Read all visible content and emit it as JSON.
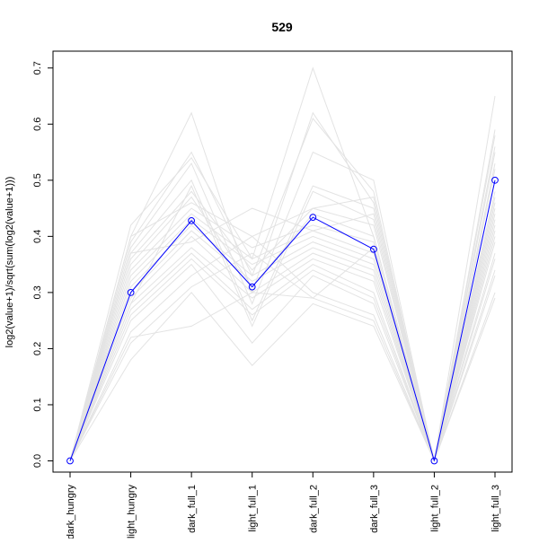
{
  "chart_data": {
    "type": "line",
    "title": "529",
    "xlabel": "",
    "ylabel": "log2(value+1)/sqrt(sum(log2(value+1)))",
    "categories": [
      "dark_hungry",
      "light_hungry",
      "dark_full_1",
      "light_full_1",
      "dark_full_2",
      "dark_full_3",
      "light_full_2",
      "light_full_3"
    ],
    "yticks": [
      0.0,
      0.1,
      0.2,
      0.3,
      0.4,
      0.5,
      0.6,
      0.7
    ],
    "ytick_labels": [
      "0.0",
      "0.1",
      "0.2",
      "0.3",
      "0.4",
      "0.5",
      "0.6",
      "0.7"
    ],
    "ylim": [
      -0.02,
      0.73
    ],
    "grid": false,
    "highlight": {
      "color": "#0000ff",
      "values": [
        0.0,
        0.3,
        0.428,
        0.31,
        0.434,
        0.377,
        0.0,
        0.5
      ]
    },
    "background_series_color": "#e3e3e3",
    "background_series": [
      [
        0.0,
        0.42,
        0.54,
        0.36,
        0.7,
        0.4,
        0.0,
        0.65
      ],
      [
        0.0,
        0.4,
        0.62,
        0.3,
        0.62,
        0.46,
        0.0,
        0.59
      ],
      [
        0.0,
        0.39,
        0.55,
        0.33,
        0.61,
        0.48,
        0.0,
        0.58
      ],
      [
        0.0,
        0.38,
        0.53,
        0.28,
        0.55,
        0.5,
        0.0,
        0.55
      ],
      [
        0.0,
        0.37,
        0.5,
        0.25,
        0.49,
        0.45,
        0.0,
        0.53
      ],
      [
        0.0,
        0.36,
        0.48,
        0.34,
        0.45,
        0.42,
        0.0,
        0.52
      ],
      [
        0.0,
        0.35,
        0.47,
        0.31,
        0.44,
        0.4,
        0.0,
        0.5
      ],
      [
        0.0,
        0.34,
        0.45,
        0.38,
        0.42,
        0.39,
        0.0,
        0.48
      ],
      [
        0.0,
        0.33,
        0.44,
        0.36,
        0.41,
        0.37,
        0.0,
        0.47
      ],
      [
        0.0,
        0.32,
        0.43,
        0.35,
        0.4,
        0.36,
        0.0,
        0.45
      ],
      [
        0.0,
        0.31,
        0.42,
        0.33,
        0.39,
        0.35,
        0.0,
        0.44
      ],
      [
        0.0,
        0.3,
        0.41,
        0.32,
        0.38,
        0.34,
        0.0,
        0.43
      ],
      [
        0.0,
        0.29,
        0.4,
        0.3,
        0.37,
        0.33,
        0.0,
        0.42
      ],
      [
        0.0,
        0.28,
        0.38,
        0.29,
        0.36,
        0.32,
        0.0,
        0.4
      ],
      [
        0.0,
        0.27,
        0.37,
        0.27,
        0.35,
        0.3,
        0.0,
        0.39
      ],
      [
        0.0,
        0.26,
        0.36,
        0.26,
        0.34,
        0.29,
        0.0,
        0.37
      ],
      [
        0.0,
        0.25,
        0.35,
        0.21,
        0.33,
        0.28,
        0.0,
        0.36
      ],
      [
        0.0,
        0.23,
        0.33,
        0.4,
        0.3,
        0.26,
        0.0,
        0.34
      ],
      [
        0.0,
        0.21,
        0.31,
        0.37,
        0.29,
        0.25,
        0.0,
        0.33
      ],
      [
        0.0,
        0.18,
        0.3,
        0.17,
        0.28,
        0.24,
        0.0,
        0.3
      ],
      [
        0.0,
        0.4,
        0.46,
        0.4,
        0.45,
        0.47,
        0.0,
        0.56
      ],
      [
        0.0,
        0.28,
        0.49,
        0.24,
        0.48,
        0.43,
        0.0,
        0.41
      ],
      [
        0.0,
        0.22,
        0.24,
        0.3,
        0.29,
        0.38,
        0.0,
        0.29
      ],
      [
        0.0,
        0.37,
        0.39,
        0.45,
        0.41,
        0.44,
        0.0,
        0.46
      ]
    ]
  }
}
